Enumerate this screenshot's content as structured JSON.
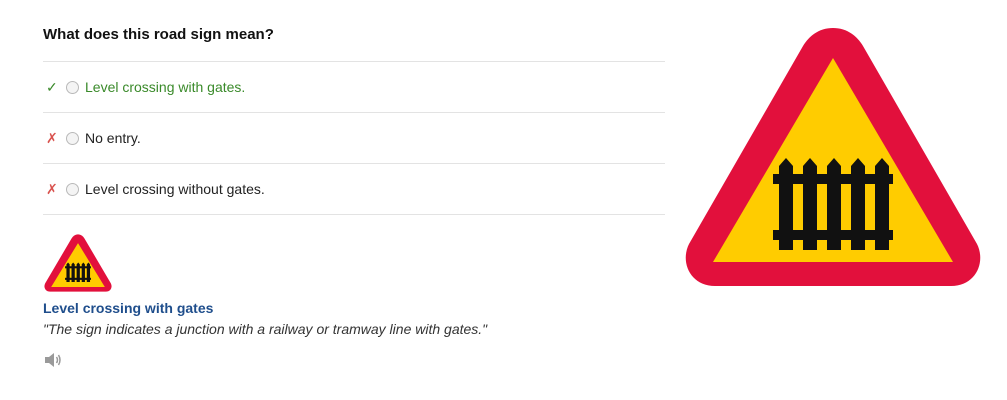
{
  "question": {
    "text": "What does this road sign mean?"
  },
  "answers": [
    {
      "mark": "✓",
      "text": "Level crossing with gates.",
      "status": "correct"
    },
    {
      "mark": "✗",
      "text": "No entry.",
      "status": "wrong"
    },
    {
      "mark": "✗",
      "text": "Level crossing without gates.",
      "status": "wrong"
    }
  ],
  "explanation": {
    "title": "Level crossing with gates",
    "quote": "\"The sign indicates a junction with a railway or tramway line with gates.\""
  },
  "colors": {
    "sign_border": "#e2103c",
    "sign_fill": "#ffcc00",
    "correct": "#3a8a2a",
    "wrong": "#d9534f",
    "title_link": "#1f4e8c"
  },
  "icons": {
    "sign": "level-crossing-with-gates-sign",
    "audio": "speaker-icon"
  }
}
